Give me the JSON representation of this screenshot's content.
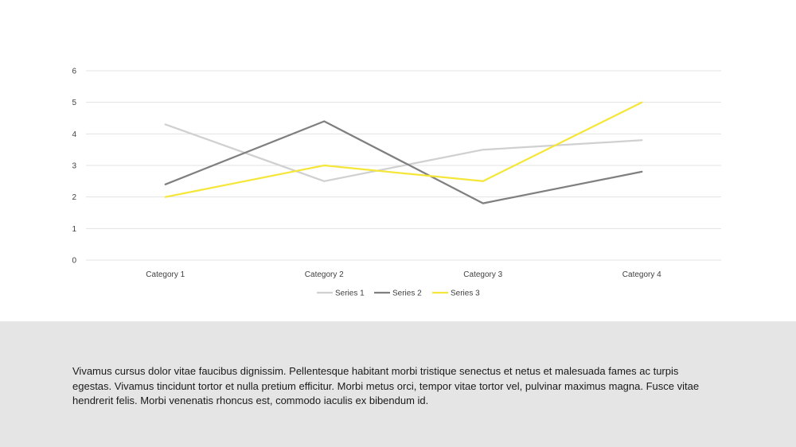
{
  "chart_data": {
    "type": "line",
    "categories": [
      "Category 1",
      "Category 2",
      "Category 3",
      "Category 4"
    ],
    "series": [
      {
        "name": "Series 1",
        "values": [
          4.3,
          2.5,
          3.5,
          3.8
        ],
        "color": "#d0d0d0"
      },
      {
        "name": "Series 2",
        "values": [
          2.4,
          4.4,
          1.8,
          2.8
        ],
        "color": "#7f7f7f"
      },
      {
        "name": "Series 3",
        "values": [
          2.0,
          3.0,
          2.5,
          5.0
        ],
        "color": "#f5e63a"
      }
    ],
    "y_ticks": [
      "0",
      "1",
      "2",
      "3",
      "4",
      "5",
      "6"
    ],
    "ylim": [
      0,
      6
    ],
    "grid": true,
    "gridline_color": "#e3e3e3",
    "legend_position": "bottom"
  },
  "footer": {
    "text": "Vivamus cursus dolor vitae faucibus dignissim. Pellentesque habitant morbi tristique senectus et netus et malesuada fames ac turpis egestas. Vivamus tincidunt tortor et nulla pretium efficitur. Morbi metus orci, tempor vitae tortor vel, pulvinar maximus magna. Fusce vitae hendrerit felis. Morbi venenatis rhoncus est, commodo iaculis ex bibendum id."
  }
}
